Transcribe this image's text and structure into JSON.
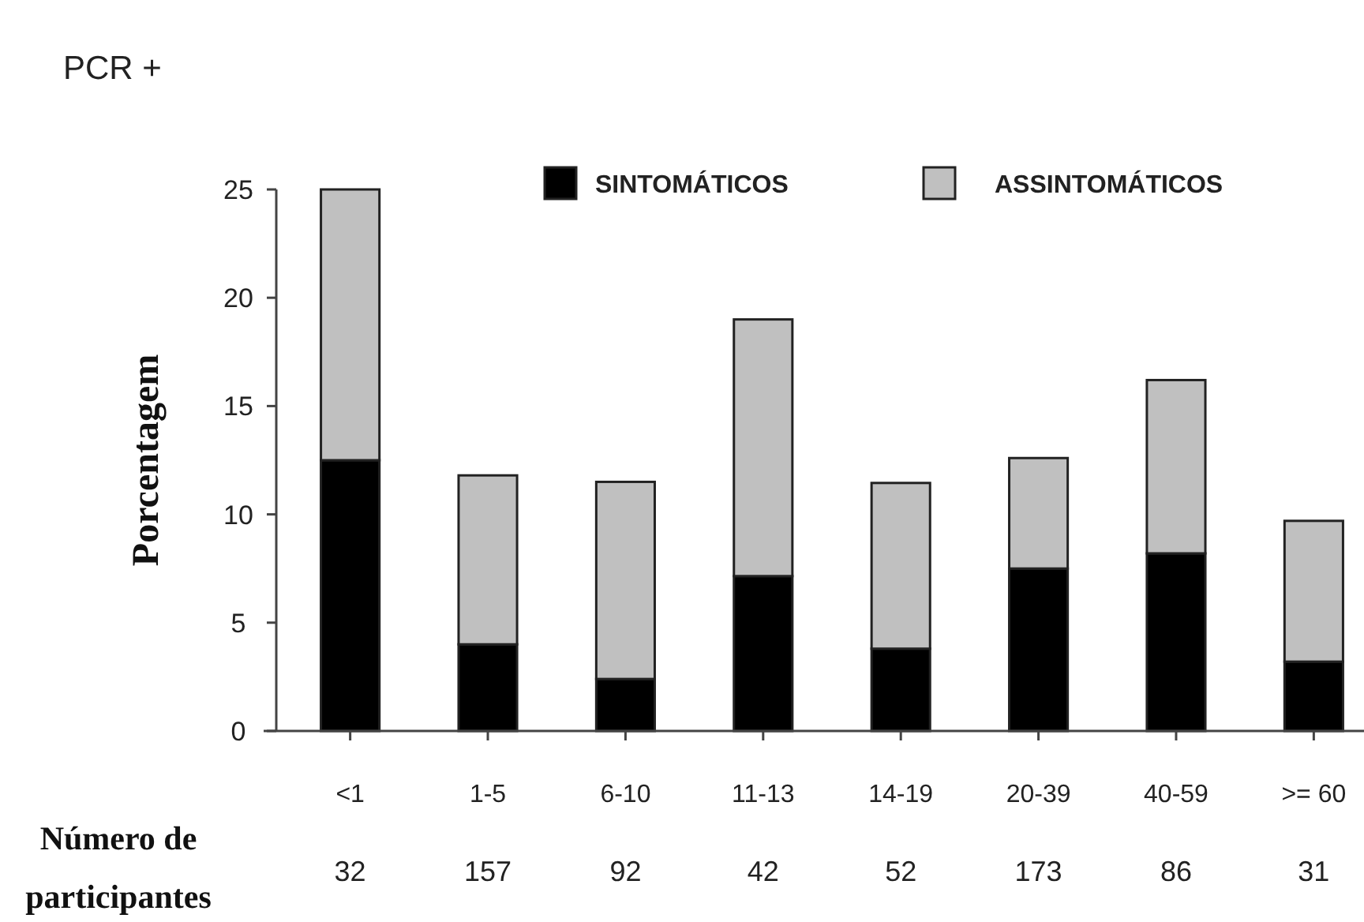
{
  "chart_data": {
    "type": "bar",
    "title": "PCR +",
    "ylabel": "Porcentagem",
    "stacked": true,
    "categories": [
      "<1",
      "1-5",
      "6-10",
      "11-13",
      "14-19",
      "20-39",
      "40-59",
      ">= 60"
    ],
    "series": [
      {
        "name": "SINTOMÁTICOS",
        "color": "#000000",
        "values": [
          12.5,
          4.0,
          2.4,
          7.15,
          3.8,
          7.5,
          8.2,
          3.2
        ]
      },
      {
        "name": "ASSINTOMÁTICOS",
        "color": "#c0c0c0",
        "values": [
          12.5,
          7.8,
          9.1,
          11.85,
          7.65,
          5.1,
          8.0,
          6.5
        ]
      }
    ],
    "ylim": [
      0,
      25
    ],
    "yticks": [
      0,
      5,
      10,
      15,
      20,
      25
    ],
    "grid": false,
    "legend": "top right",
    "annotations": [
      "Número de participantes",
      "32",
      "157",
      "92",
      "42",
      "52",
      "173",
      "86",
      "31"
    ]
  }
}
